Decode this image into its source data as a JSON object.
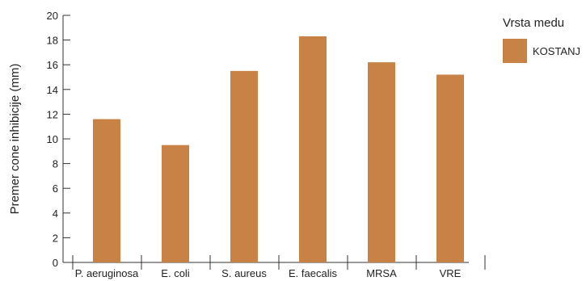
{
  "chart_data": {
    "type": "bar",
    "categories": [
      "P. aeruginosa",
      "E. coli",
      "S. aureus",
      "E. faecalis",
      "MRSA",
      "VRE"
    ],
    "series": [
      {
        "name": "KOSTANJ",
        "values": [
          11.6,
          9.5,
          15.5,
          18.3,
          16.2,
          15.2
        ],
        "color": "#C88245"
      }
    ],
    "ylabel": "Premer cone inhibicije (mm)",
    "xlabel": "",
    "ylim": [
      0,
      20
    ],
    "yticks": [
      0,
      2,
      4,
      6,
      8,
      10,
      12,
      14,
      16,
      18,
      20
    ],
    "grid": false,
    "legend": {
      "title": "Vrsta medu",
      "placement": "top-right"
    }
  }
}
